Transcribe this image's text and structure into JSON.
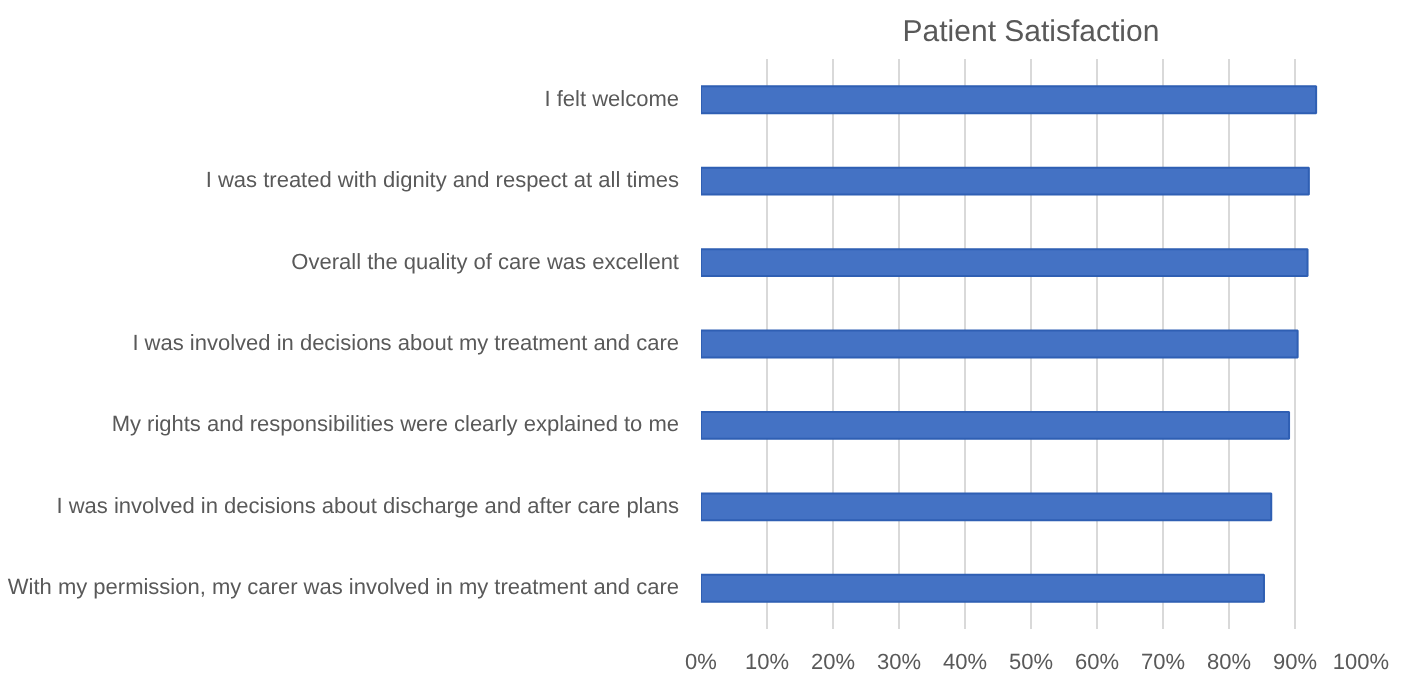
{
  "chart_data": {
    "type": "bar",
    "orientation": "horizontal",
    "title": "Patient Satisfaction",
    "categories": [
      "I felt welcome",
      "I was treated with dignity and respect at all times",
      "Overall the quality of care was excellent",
      "I was involved in decisions about my treatment and care",
      "My rights and responsibilities were clearly explained to me",
      "I was involved in decisions about discharge and after care plans",
      "With my permission, my carer was involved in my treatment and care"
    ],
    "values": [
      0.932,
      0.921,
      0.919,
      0.904,
      0.891,
      0.864,
      0.853
    ],
    "color": "#4472c4",
    "xlim": [
      0,
      1
    ],
    "xticks": [
      {
        "value": 0,
        "label": "0%"
      },
      {
        "value": 0.1,
        "label": "10%"
      },
      {
        "value": 0.2,
        "label": "20%"
      },
      {
        "value": 0.3,
        "label": "30%"
      },
      {
        "value": 0.4,
        "label": "40%"
      },
      {
        "value": 0.5,
        "label": "50%"
      },
      {
        "value": 0.6,
        "label": "60%"
      },
      {
        "value": 0.7,
        "label": "70%"
      },
      {
        "value": 0.8,
        "label": "80%"
      },
      {
        "value": 0.9,
        "label": "90%"
      },
      {
        "value": 1,
        "label": "100%"
      }
    ],
    "grid": "x"
  }
}
